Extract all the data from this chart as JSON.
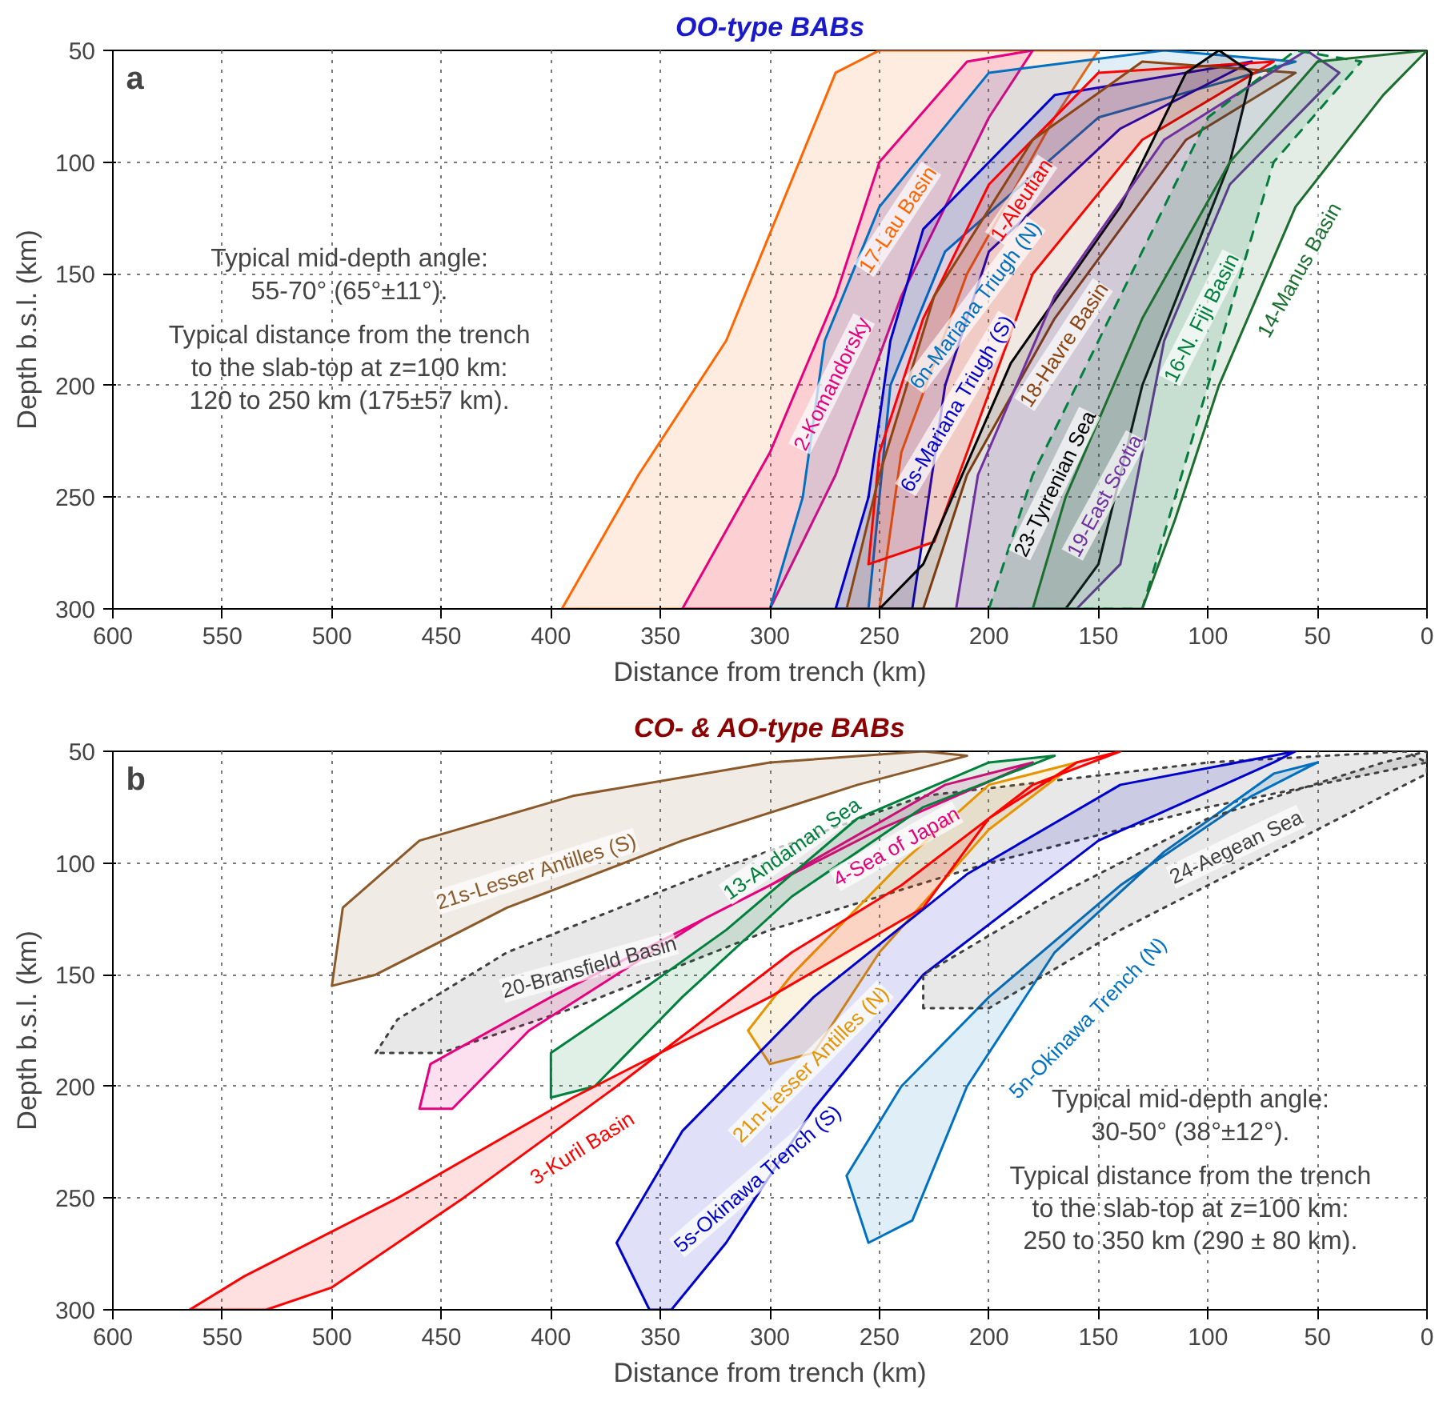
{
  "chart_data": [
    {
      "type": "area",
      "title": "OO-type BABs",
      "xlabel": "Distance from trench (km)",
      "ylabel": "Depth b.s.l. (km)",
      "xlim": [
        600,
        0
      ],
      "ylim": [
        300,
        50
      ],
      "xticks": [
        600,
        550,
        500,
        450,
        400,
        350,
        300,
        250,
        200,
        150,
        100,
        50,
        0
      ],
      "yticks": [
        50,
        100,
        150,
        200,
        250,
        300
      ],
      "grid": true,
      "annotations": [
        "a",
        "Typical mid-depth angle:\n55-70° (65°±11°).",
        "Typical distance from the trench\nto the slab-top at z=100 km:\n120 to 250 km (175±57 km)."
      ],
      "series": [
        {
          "name": "17-Lau Basin",
          "color": "#ff6600",
          "x": [
            395,
            360,
            320,
            295,
            270,
            250,
            150,
            170,
            210,
            240,
            250
          ],
          "values": [
            300,
            240,
            180,
            120,
            60,
            50,
            50,
            80,
            150,
            230,
            300
          ]
        },
        {
          "name": "2-Komandorsky",
          "color": "#e6007e",
          "x": [
            340,
            300,
            270,
            250,
            210,
            180,
            200,
            240,
            270,
            300
          ],
          "values": [
            300,
            230,
            160,
            100,
            55,
            50,
            80,
            160,
            240,
            300
          ]
        },
        {
          "name": "6n-Mariana Triugh (N)",
          "color": "#0070c0",
          "x": [
            300,
            285,
            275,
            250,
            200,
            120,
            60,
            150,
            220,
            245,
            255
          ],
          "values": [
            300,
            250,
            180,
            120,
            60,
            50,
            55,
            80,
            140,
            200,
            300
          ]
        },
        {
          "name": "6s-Mariana Triugh (S)",
          "color": "#0000cc",
          "x": [
            270,
            255,
            245,
            230,
            170,
            80,
            140,
            200,
            220,
            235
          ],
          "values": [
            300,
            250,
            180,
            130,
            70,
            55,
            85,
            140,
            200,
            300
          ]
        },
        {
          "name": "1-Aleutian",
          "color": "#ff0000",
          "x": [
            255,
            250,
            230,
            200,
            150,
            70,
            130,
            180,
            225
          ],
          "values": [
            280,
            230,
            170,
            110,
            60,
            55,
            90,
            150,
            270
          ]
        },
        {
          "name": "18-Havre Basin",
          "color": "#8b4513",
          "x": [
            265,
            250,
            225,
            180,
            130,
            60,
            110,
            170,
            210,
            230
          ],
          "values": [
            300,
            240,
            160,
            90,
            55,
            60,
            90,
            170,
            240,
            300
          ]
        },
        {
          "name": "23-Tyrrenian Sea",
          "color": "#000000",
          "x": [
            250,
            230,
            190,
            140,
            110,
            95,
            80,
            90,
            130,
            150,
            165
          ],
          "values": [
            300,
            280,
            190,
            120,
            60,
            50,
            60,
            100,
            200,
            280,
            300
          ]
        },
        {
          "name": "19-East Scotia",
          "color": "#7030a0",
          "x": [
            215,
            205,
            170,
            120,
            55,
            40,
            90,
            120,
            140,
            160
          ],
          "values": [
            300,
            240,
            160,
            90,
            50,
            60,
            110,
            180,
            280,
            300
          ]
        },
        {
          "name": "16-N. Fiji Basin",
          "color": "#007f3f",
          "line_style": "dashed",
          "x": [
            200,
            180,
            140,
            100,
            60,
            30,
            70,
            100,
            130
          ],
          "values": [
            300,
            240,
            160,
            80,
            50,
            55,
            100,
            200,
            300
          ]
        },
        {
          "name": "14-Manus Basin",
          "color": "#1b6e2e",
          "x": [
            180,
            165,
            130,
            90,
            50,
            0,
            20,
            60,
            95,
            115,
            130
          ],
          "values": [
            300,
            250,
            170,
            100,
            55,
            50,
            70,
            120,
            200,
            260,
            300
          ]
        }
      ]
    },
    {
      "type": "area",
      "title": "CO- & AO-type BABs",
      "xlabel": "Distance from trench (km)",
      "ylabel": "Depth b.s.l. (km)",
      "xlim": [
        600,
        0
      ],
      "ylim": [
        300,
        50
      ],
      "xticks": [
        600,
        550,
        500,
        450,
        400,
        350,
        300,
        250,
        200,
        150,
        100,
        50,
        0
      ],
      "yticks": [
        50,
        100,
        150,
        200,
        250,
        300
      ],
      "grid": true,
      "annotations": [
        "b",
        "Typical mid-depth angle:\n30-50° (38°±12°).",
        "Typical distance from the trench\nto the slab-top at z=100 km:\n250 to 350 km (290 ± 80 km)."
      ],
      "series": [
        {
          "name": "21s-Lesser Antilles (S)",
          "color": "#8b5a2b",
          "x": [
            500,
            495,
            460,
            390,
            300,
            230,
            210,
            260,
            340,
            420,
            480
          ],
          "values": [
            155,
            120,
            90,
            70,
            55,
            50,
            52,
            65,
            90,
            120,
            150
          ]
        },
        {
          "name": "20-Bransfield Basin",
          "color": "#404040",
          "line_style": "dotted",
          "x": [
            480,
            470,
            420,
            330,
            230,
            100,
            10,
            0,
            100,
            200,
            300,
            390,
            450
          ],
          "values": [
            185,
            170,
            140,
            105,
            70,
            55,
            50,
            55,
            75,
            100,
            130,
            165,
            185
          ]
        },
        {
          "name": "4-Sea of Japan",
          "color": "#e6007e",
          "x": [
            460,
            455,
            400,
            300,
            220,
            180,
            250,
            330,
            410,
            445
          ],
          "values": [
            210,
            190,
            160,
            110,
            65,
            55,
            85,
            125,
            175,
            210
          ]
        },
        {
          "name": "13-Andaman Sea",
          "color": "#00803c",
          "x": [
            400,
            400,
            370,
            320,
            260,
            200,
            170,
            230,
            290,
            340,
            380
          ],
          "values": [
            205,
            185,
            165,
            130,
            80,
            55,
            52,
            75,
            115,
            160,
            200
          ]
        },
        {
          "name": "21n-Lesser Antilles (N)",
          "color": "#e69500",
          "x": [
            300,
            310,
            290,
            240,
            200,
            160,
            200,
            250,
            280
          ],
          "values": [
            190,
            175,
            150,
            100,
            65,
            55,
            85,
            140,
            185
          ]
        },
        {
          "name": "3-Kuril Basin",
          "color": "#ff0000",
          "x": [
            565,
            540,
            470,
            390,
            300,
            230,
            200,
            160,
            140,
            180,
            240,
            290,
            370,
            440,
            500,
            530
          ],
          "values": [
            300,
            285,
            250,
            205,
            160,
            120,
            80,
            55,
            50,
            65,
            110,
            140,
            200,
            250,
            290,
            300
          ]
        },
        {
          "name": "5s-Okinawa Trench (S)",
          "color": "#0000cc",
          "x": [
            355,
            370,
            340,
            280,
            210,
            140,
            60,
            70,
            150,
            230,
            280,
            320,
            345
          ],
          "values": [
            300,
            270,
            220,
            160,
            105,
            65,
            50,
            55,
            90,
            150,
            210,
            270,
            300
          ]
        },
        {
          "name": "5n-Okinawa Trench (N)",
          "color": "#0070c0",
          "x": [
            255,
            265,
            240,
            200,
            140,
            80,
            50,
            70,
            120,
            170,
            210,
            235
          ],
          "values": [
            270,
            240,
            200,
            160,
            110,
            70,
            55,
            60,
            95,
            140,
            200,
            260
          ]
        },
        {
          "name": "24-Aegean Sea",
          "color": "#404040",
          "line_style": "dotted",
          "x": [
            230,
            230,
            170,
            100,
            20,
            0,
            0,
            60,
            140,
            200
          ],
          "values": [
            165,
            150,
            115,
            80,
            55,
            50,
            60,
            90,
            130,
            165
          ]
        }
      ]
    }
  ]
}
